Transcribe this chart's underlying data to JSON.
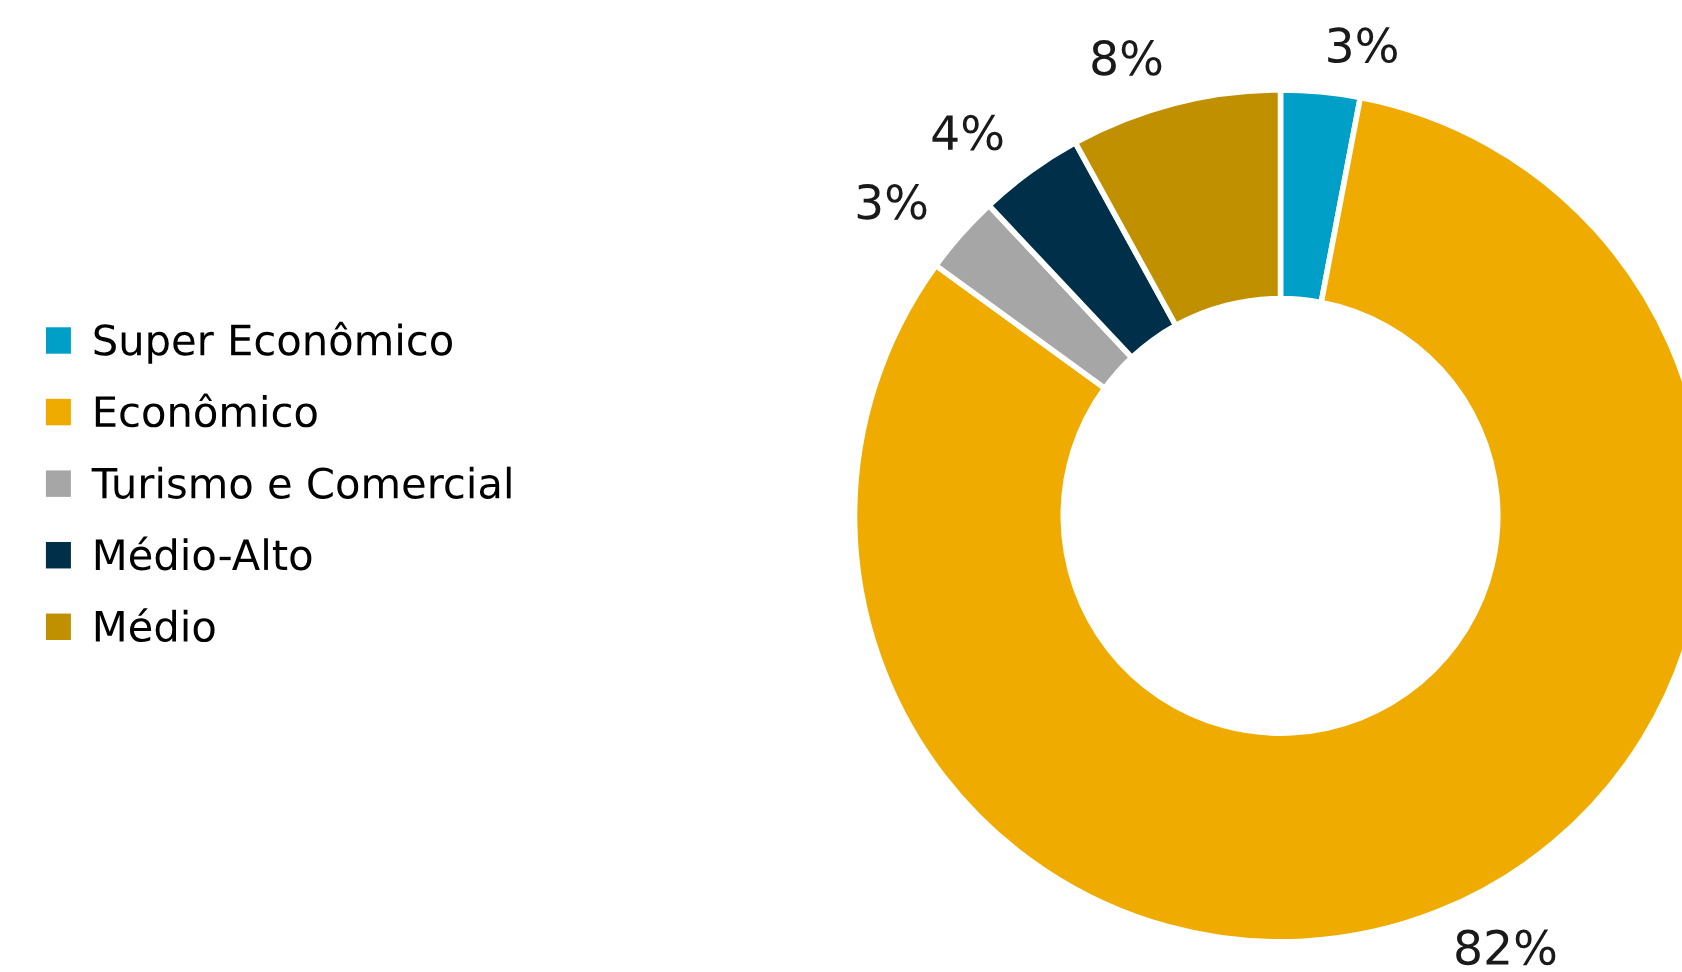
{
  "chart_data": {
    "type": "donut",
    "categories": [
      "Super Econômico",
      "Econômico",
      "Turismo e Comercial",
      "Médio-Alto",
      "Médio"
    ],
    "values": [
      3,
      82,
      3,
      4,
      8
    ],
    "colors": [
      "#009fc8",
      "#f0ab00",
      "#a6a6a6",
      "#002f4a",
      "#c09000"
    ],
    "value_labels": [
      "3%",
      "82%",
      "3%",
      "4%",
      "8%"
    ],
    "legend": "left"
  }
}
